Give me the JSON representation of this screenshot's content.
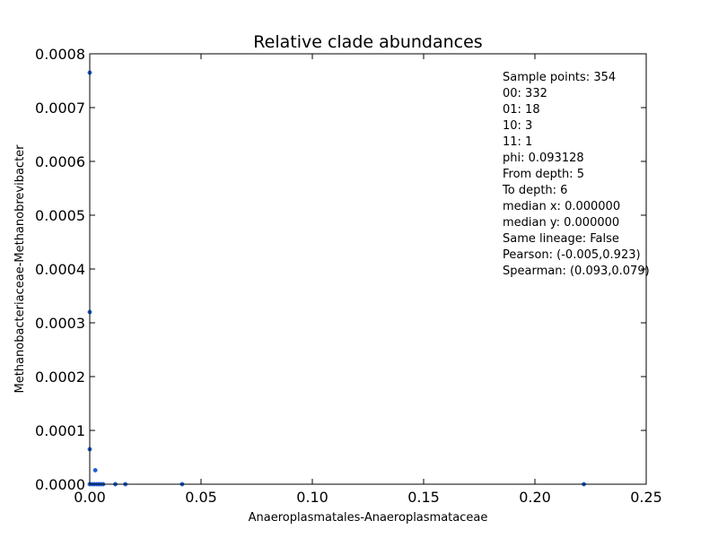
{
  "chart_data": {
    "type": "scatter",
    "title": "Relative clade abundances",
    "xlabel": "Anaeroplasmatales-Anaeroplasmataceae",
    "ylabel": "Methanobacteriaceae-Methanobrevibacter",
    "xlim": [
      0,
      0.25
    ],
    "ylim": [
      0,
      0.0008
    ],
    "x_ticks": [
      0.0,
      0.05,
      0.1,
      0.15,
      0.2,
      0.25
    ],
    "x_tick_labels": [
      "0.00",
      "0.05",
      "0.10",
      "0.15",
      "0.20",
      "0.25"
    ],
    "y_ticks": [
      0,
      0.0001,
      0.0002,
      0.0003,
      0.0004,
      0.0005,
      0.0006,
      0.0007,
      0.0008
    ],
    "y_tick_labels": [
      "0.0000",
      "0.0001",
      "0.0002",
      "0.0003",
      "0.0004",
      "0.0005",
      "0.0006",
      "0.0007",
      "0.0008"
    ],
    "grid": false,
    "marker_color": "#1f5fd6",
    "series": [
      {
        "points": [
          {
            "x": 0.0,
            "y": 0.000765
          },
          {
            "x": 0.0,
            "y": 0.00032
          },
          {
            "x": 0.0,
            "y": 6.5e-05
          },
          {
            "x": 0.0025,
            "y": 2.6e-05
          },
          {
            "x": 0.0,
            "y": 0.0
          },
          {
            "x": 0.001,
            "y": 0.0
          },
          {
            "x": 0.002,
            "y": 0.0
          },
          {
            "x": 0.003,
            "y": 0.0
          },
          {
            "x": 0.004,
            "y": 0.0
          },
          {
            "x": 0.005,
            "y": 0.0
          },
          {
            "x": 0.006,
            "y": 0.0
          },
          {
            "x": 0.0115,
            "y": 0.0
          },
          {
            "x": 0.016,
            "y": 0.0
          },
          {
            "x": 0.0415,
            "y": 0.0
          },
          {
            "x": 0.222,
            "y": 0.0
          }
        ]
      }
    ],
    "annotations": [
      "Sample points: 354",
      "00: 332",
      "01: 18",
      "10: 3",
      "11: 1",
      "phi: 0.093128",
      "From depth: 5",
      "To depth: 6",
      "median x: 0.000000",
      "median y: 0.000000",
      "Same lineage: False",
      "Pearson: (-0.005,0.923)",
      "Spearman: (0.093,0.079)"
    ]
  }
}
